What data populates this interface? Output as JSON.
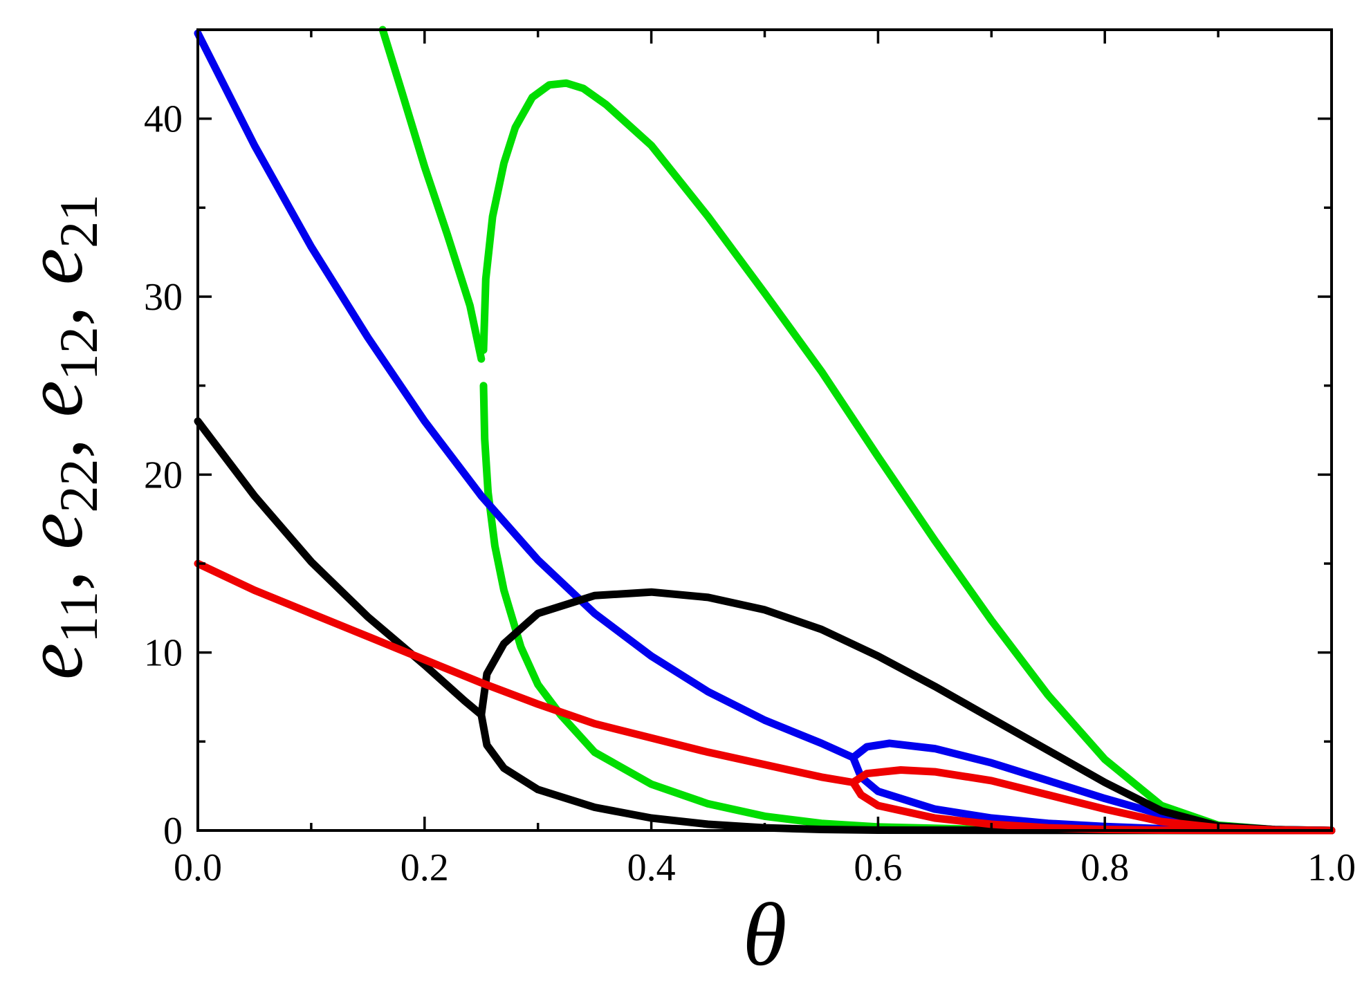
{
  "chart_data": {
    "type": "line",
    "xlabel": "θ",
    "ylabel": {
      "parts": [
        {
          "base": "e",
          "sub": "11"
        },
        {
          "sep": ", "
        },
        {
          "base": "e",
          "sub": "22"
        },
        {
          "sep": ", "
        },
        {
          "base": "e",
          "sub": "12"
        },
        {
          "sep": ", "
        },
        {
          "base": "e",
          "sub": "21"
        }
      ]
    },
    "xlim": [
      0,
      1
    ],
    "ylim": [
      0,
      45
    ],
    "xticks": [
      0.0,
      0.2,
      0.4,
      0.6,
      0.8,
      1.0
    ],
    "xtick_labels": [
      "0.0",
      "0.2",
      "0.4",
      "0.6",
      "0.8",
      "1.0"
    ],
    "yticks": [
      0,
      10,
      20,
      30,
      40
    ],
    "ytick_labels": [
      "0",
      "10",
      "20",
      "30",
      "40"
    ],
    "grid": false,
    "legend": "none",
    "series": [
      {
        "color": "#00dd00",
        "branches": [
          [
            [
              0.163,
              45
            ],
            [
              0.18,
              41.5
            ],
            [
              0.2,
              37.3
            ],
            [
              0.22,
              33.5
            ],
            [
              0.24,
              29.5
            ],
            [
              0.25,
              26.5
            ]
          ],
          [
            [
              0.252,
              27
            ],
            [
              0.254,
              31
            ],
            [
              0.26,
              34.5
            ],
            [
              0.27,
              37.5
            ],
            [
              0.28,
              39.5
            ],
            [
              0.295,
              41.2
            ],
            [
              0.31,
              41.9
            ],
            [
              0.325,
              42
            ],
            [
              0.34,
              41.7
            ],
            [
              0.36,
              40.8
            ],
            [
              0.4,
              38.5
            ],
            [
              0.45,
              34.5
            ],
            [
              0.5,
              30.2
            ],
            [
              0.55,
              25.8
            ],
            [
              0.6,
              21
            ],
            [
              0.65,
              16.3
            ],
            [
              0.7,
              11.8
            ],
            [
              0.75,
              7.6
            ],
            [
              0.8,
              4.0
            ],
            [
              0.85,
              1.4
            ],
            [
              0.9,
              0.3
            ],
            [
              0.95,
              0.05
            ],
            [
              1.0,
              0
            ]
          ],
          [
            [
              0.252,
              25
            ],
            [
              0.253,
              22
            ],
            [
              0.256,
              19
            ],
            [
              0.262,
              16
            ],
            [
              0.27,
              13.5
            ],
            [
              0.285,
              10.3
            ],
            [
              0.3,
              8.2
            ],
            [
              0.32,
              6.5
            ],
            [
              0.35,
              4.4
            ],
            [
              0.4,
              2.6
            ],
            [
              0.45,
              1.5
            ],
            [
              0.5,
              0.8
            ],
            [
              0.55,
              0.4
            ],
            [
              0.6,
              0.2
            ],
            [
              0.7,
              0.05
            ],
            [
              0.8,
              0.01
            ],
            [
              1.0,
              0
            ]
          ]
        ]
      },
      {
        "color": "#0000ee",
        "branches": [
          [
            [
              0.0,
              44.8
            ],
            [
              0.05,
              38.5
            ],
            [
              0.1,
              32.8
            ],
            [
              0.15,
              27.7
            ],
            [
              0.2,
              23
            ],
            [
              0.25,
              18.8
            ],
            [
              0.3,
              15.2
            ],
            [
              0.35,
              12.2
            ],
            [
              0.4,
              9.8
            ],
            [
              0.45,
              7.8
            ],
            [
              0.5,
              6.2
            ],
            [
              0.55,
              4.9
            ],
            [
              0.578,
              4.1
            ]
          ],
          [
            [
              0.578,
              4.1
            ],
            [
              0.59,
              4.7
            ],
            [
              0.61,
              4.9
            ],
            [
              0.65,
              4.6
            ],
            [
              0.7,
              3.8
            ],
            [
              0.75,
              2.8
            ],
            [
              0.8,
              1.8
            ],
            [
              0.85,
              0.9
            ],
            [
              0.9,
              0.25
            ],
            [
              0.95,
              0.05
            ],
            [
              1.0,
              0
            ]
          ],
          [
            [
              0.578,
              4.1
            ],
            [
              0.585,
              3.0
            ],
            [
              0.6,
              2.2
            ],
            [
              0.65,
              1.2
            ],
            [
              0.7,
              0.7
            ],
            [
              0.75,
              0.4
            ],
            [
              0.8,
              0.22
            ],
            [
              0.85,
              0.1
            ],
            [
              0.9,
              0.04
            ],
            [
              1.0,
              0
            ]
          ]
        ]
      },
      {
        "color": "#000000",
        "branches": [
          [
            [
              0.0,
              23
            ],
            [
              0.05,
              18.8
            ],
            [
              0.1,
              15.1
            ],
            [
              0.15,
              12.0
            ],
            [
              0.2,
              9.3
            ],
            [
              0.235,
              7.3
            ],
            [
              0.25,
              6.5
            ]
          ],
          [
            [
              0.25,
              6.5
            ],
            [
              0.255,
              8.8
            ],
            [
              0.27,
              10.5
            ],
            [
              0.3,
              12.2
            ],
            [
              0.35,
              13.2
            ],
            [
              0.4,
              13.4
            ],
            [
              0.45,
              13.1
            ],
            [
              0.5,
              12.4
            ],
            [
              0.55,
              11.3
            ],
            [
              0.6,
              9.8
            ],
            [
              0.65,
              8.1
            ],
            [
              0.7,
              6.3
            ],
            [
              0.75,
              4.5
            ],
            [
              0.8,
              2.7
            ],
            [
              0.85,
              1.1
            ],
            [
              0.9,
              0.25
            ],
            [
              0.95,
              0.05
            ],
            [
              1.0,
              0
            ]
          ],
          [
            [
              0.25,
              6.5
            ],
            [
              0.255,
              4.8
            ],
            [
              0.27,
              3.5
            ],
            [
              0.3,
              2.3
            ],
            [
              0.35,
              1.3
            ],
            [
              0.4,
              0.7
            ],
            [
              0.45,
              0.35
            ],
            [
              0.5,
              0.15
            ],
            [
              0.55,
              0.06
            ],
            [
              0.6,
              0.02
            ],
            [
              1.0,
              0
            ]
          ]
        ]
      },
      {
        "color": "#ee0000",
        "branches": [
          [
            [
              0.0,
              15
            ],
            [
              0.05,
              13.5
            ],
            [
              0.1,
              12.2
            ],
            [
              0.15,
              10.9
            ],
            [
              0.2,
              9.6
            ],
            [
              0.25,
              8.3
            ],
            [
              0.3,
              7.1
            ],
            [
              0.35,
              6.0
            ],
            [
              0.4,
              5.2
            ],
            [
              0.45,
              4.4
            ],
            [
              0.5,
              3.7
            ],
            [
              0.55,
              3.0
            ],
            [
              0.578,
              2.7
            ]
          ],
          [
            [
              0.578,
              2.7
            ],
            [
              0.59,
              3.2
            ],
            [
              0.62,
              3.4
            ],
            [
              0.65,
              3.3
            ],
            [
              0.7,
              2.8
            ],
            [
              0.75,
              2.0
            ],
            [
              0.8,
              1.2
            ],
            [
              0.85,
              0.5
            ],
            [
              0.9,
              0.15
            ],
            [
              0.95,
              0.03
            ],
            [
              1.0,
              0
            ]
          ],
          [
            [
              0.578,
              2.7
            ],
            [
              0.585,
              2.0
            ],
            [
              0.6,
              1.4
            ],
            [
              0.65,
              0.7
            ],
            [
              0.7,
              0.35
            ],
            [
              0.75,
              0.15
            ],
            [
              0.8,
              0.06
            ],
            [
              0.85,
              0.02
            ],
            [
              1.0,
              0
            ]
          ]
        ]
      }
    ]
  }
}
